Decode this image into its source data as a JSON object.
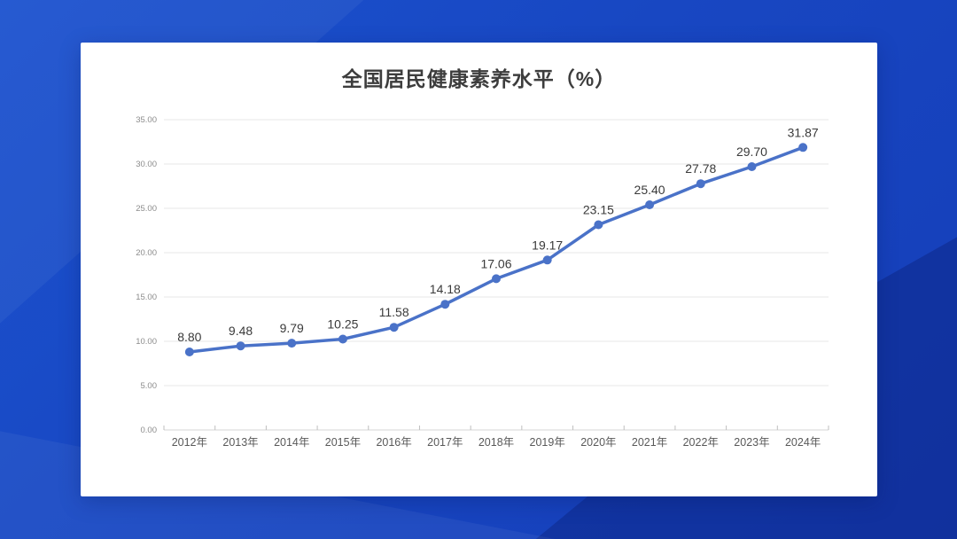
{
  "background": {
    "base_color": "#1847c2",
    "light_facet_color": "#1d54d4",
    "dark_facet_color": "#12339f"
  },
  "card": {
    "background_color": "#ffffff"
  },
  "chart_data": {
    "type": "line",
    "title": "全国居民健康素养水平（%）",
    "categories": [
      "2012年",
      "2013年",
      "2014年",
      "2015年",
      "2016年",
      "2017年",
      "2018年",
      "2019年",
      "2020年",
      "2021年",
      "2022年",
      "2023年",
      "2024年"
    ],
    "values": [
      8.8,
      9.48,
      9.79,
      10.25,
      11.58,
      14.18,
      17.06,
      19.17,
      23.15,
      25.4,
      27.78,
      29.7,
      31.87
    ],
    "point_labels": [
      "8.80",
      "9.48",
      "9.79",
      "10.25",
      "11.58",
      "14.18",
      "17.06",
      "19.17",
      "23.15",
      "25.40",
      "27.78",
      "29.70",
      "31.87"
    ],
    "xlabel": "",
    "ylabel": "",
    "ylim": [
      0,
      35
    ],
    "ytick_labels": [
      "0.00",
      "5.00",
      "10.00",
      "15.00",
      "20.00",
      "25.00",
      "30.00",
      "35.00"
    ],
    "grid": true,
    "legend_position": "none",
    "colors": {
      "line": "#4a72c8",
      "marker": "#4a72c8",
      "gridline": "#e7e7e7",
      "axis_line": "#d5d5d5",
      "tick_mark": "#bfbfbf",
      "ytick_text": "#8c8c8c",
      "xtick_text": "#595959",
      "data_label_text": "#3a3a3a",
      "title_text": "#3d3d3d"
    }
  }
}
